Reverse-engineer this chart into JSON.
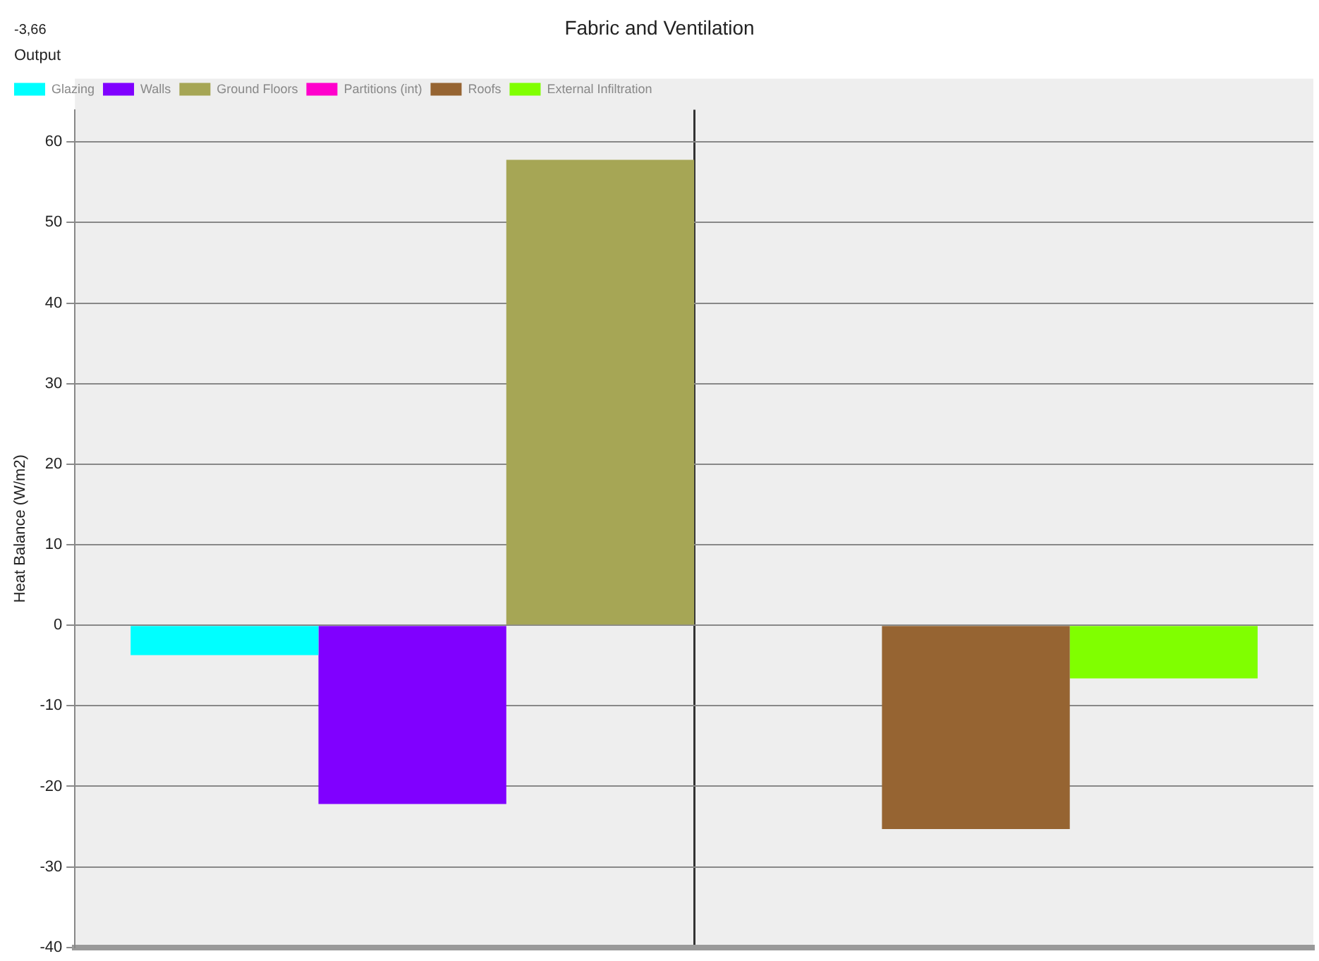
{
  "chart_data": {
    "type": "bar",
    "title": "Fabric and Ventilation",
    "ylabel": "Heat Balance (W/m2)",
    "annotations": [
      "-3,66",
      "Output"
    ],
    "categories": [
      null
    ],
    "series": [
      {
        "name": "Glazing",
        "color": "#00ffff",
        "values": [
          -3.7
        ]
      },
      {
        "name": "Walls",
        "color": "#8000ff",
        "values": [
          -22.2
        ]
      },
      {
        "name": "Ground Floors",
        "color": "#a6a655",
        "values": [
          57.8
        ]
      },
      {
        "name": "Partitions (int)",
        "color": "#ff00cc",
        "values": [
          0
        ]
      },
      {
        "name": "Roofs",
        "color": "#966432",
        "values": [
          -25.3
        ]
      },
      {
        "name": "External Infiltration",
        "color": "#80ff00",
        "values": [
          -6.6
        ]
      }
    ],
    "ylim": [
      -40,
      64
    ],
    "yticks": [
      -40,
      -30,
      -20,
      -10,
      0,
      10,
      20,
      30,
      40,
      50,
      60
    ],
    "grid": true,
    "legend": "top left"
  }
}
